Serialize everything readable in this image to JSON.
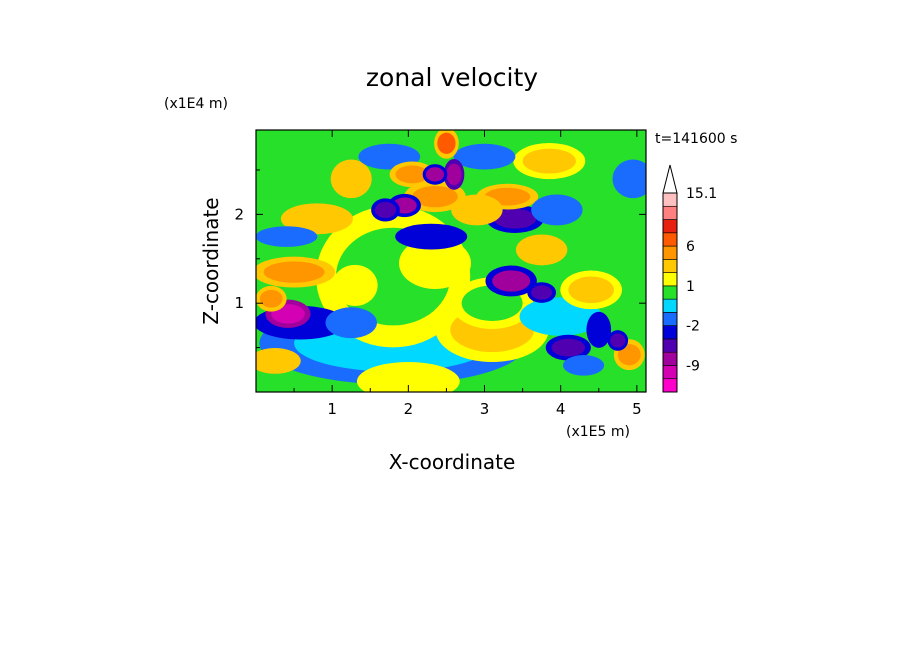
{
  "chart_data": {
    "type": "heatmap",
    "title": "zonal velocity",
    "xlabel": "X-coordinate",
    "ylabel": "Z-coordinate",
    "x_unit": "(x1E5 m)",
    "y_unit": "(x1E4 m)",
    "time_label": "t=141600 s",
    "xlim": [
      0,
      5.12
    ],
    "ylim": [
      0,
      2.95
    ],
    "x_ticks": [
      {
        "value": 1,
        "label": "1"
      },
      {
        "value": 2,
        "label": "2"
      },
      {
        "value": 3,
        "label": "3"
      },
      {
        "value": 4,
        "label": "4"
      },
      {
        "value": 5,
        "label": "5"
      }
    ],
    "y_ticks": [
      {
        "value": 1,
        "label": "1"
      },
      {
        "value": 2,
        "label": "2"
      }
    ],
    "colorbar": {
      "levels": [
        -15,
        -12,
        -9,
        -6,
        -4,
        -2,
        -1,
        0,
        1,
        2,
        4,
        6,
        9,
        12,
        15.1
      ],
      "colors": [
        "#ff00cc",
        "#d400b4",
        "#a0009c",
        "#5000b0",
        "#0000d8",
        "#1a6cff",
        "#00d8ff",
        "#26e02a",
        "#ffff00",
        "#ffc800",
        "#ff9600",
        "#ff5a00",
        "#e82010",
        "#ff8080",
        "#ffc0c0"
      ],
      "labeled": [
        {
          "value": 15.1,
          "label": "15.1"
        },
        {
          "value": 6,
          "label": "6"
        },
        {
          "value": 1,
          "label": "1"
        },
        {
          "value": -2,
          "label": "-2"
        },
        {
          "value": -9,
          "label": "-9"
        }
      ],
      "extend": "max"
    },
    "grid": false,
    "features": [
      {
        "x": 0.42,
        "z": 0.88,
        "value": -12,
        "rx": 0.22,
        "rz": 0.11
      },
      {
        "x": 0.58,
        "z": 0.78,
        "value": -3,
        "rx": 0.45,
        "rz": 0.13
      },
      {
        "x": 1.25,
        "z": 0.78,
        "value": -2,
        "rx": 0.25,
        "rz": 0.12
      },
      {
        "x": 1.8,
        "z": 1.3,
        "value": 0.5,
        "rx": 0.75,
        "rz": 0.55
      },
      {
        "x": 1.3,
        "z": 1.2,
        "value": 1.5,
        "rx": 0.22,
        "rz": 0.16
      },
      {
        "x": 2.35,
        "z": 1.45,
        "value": 1.5,
        "rx": 0.35,
        "rz": 0.2
      },
      {
        "x": 1.8,
        "z": 0.55,
        "value": -0.5,
        "rx": 1.3,
        "rz": 0.32
      },
      {
        "x": 2.0,
        "z": 0.12,
        "value": 1.5,
        "rx": 0.5,
        "rz": 0.15
      },
      {
        "x": 3.1,
        "z": 0.7,
        "value": 2.5,
        "rx": 0.55,
        "rz": 0.25
      },
      {
        "x": 1.7,
        "z": 2.05,
        "value": -6,
        "rx": 0.14,
        "rz": 0.09
      },
      {
        "x": 1.95,
        "z": 2.1,
        "value": -7,
        "rx": 0.16,
        "rz": 0.09
      },
      {
        "x": 2.35,
        "z": 2.45,
        "value": -7,
        "rx": 0.12,
        "rz": 0.08
      },
      {
        "x": 2.6,
        "z": 2.45,
        "value": -8,
        "rx": 0.1,
        "rz": 0.12
      },
      {
        "x": 2.3,
        "z": 1.75,
        "value": -3,
        "rx": 0.35,
        "rz": 0.1
      },
      {
        "x": 3.4,
        "z": 1.95,
        "value": -6,
        "rx": 0.28,
        "rz": 0.11
      },
      {
        "x": 3.35,
        "z": 1.25,
        "value": -7,
        "rx": 0.25,
        "rz": 0.12
      },
      {
        "x": 3.75,
        "z": 1.12,
        "value": -6,
        "rx": 0.14,
        "rz": 0.08
      },
      {
        "x": 4.1,
        "z": 0.5,
        "value": -5,
        "rx": 0.22,
        "rz": 0.1
      },
      {
        "x": 4.5,
        "z": 0.7,
        "value": -4,
        "rx": 0.12,
        "rz": 0.14
      },
      {
        "x": 4.75,
        "z": 0.58,
        "value": -5,
        "rx": 0.1,
        "rz": 0.08
      },
      {
        "x": 4.3,
        "z": 0.3,
        "value": -2,
        "rx": 0.2,
        "rz": 0.08
      },
      {
        "x": 2.5,
        "z": 2.8,
        "value": 7,
        "rx": 0.12,
        "rz": 0.12
      },
      {
        "x": 2.35,
        "z": 2.2,
        "value": 4,
        "rx": 0.3,
        "rz": 0.12
      },
      {
        "x": 2.05,
        "z": 2.45,
        "value": 4,
        "rx": 0.22,
        "rz": 0.1
      },
      {
        "x": 3.3,
        "z": 2.2,
        "value": 4,
        "rx": 0.3,
        "rz": 0.1
      },
      {
        "x": 2.9,
        "z": 2.05,
        "value": 3,
        "rx": 0.25,
        "rz": 0.12
      },
      {
        "x": 0.5,
        "z": 1.35,
        "value": 4,
        "rx": 0.4,
        "rz": 0.12
      },
      {
        "x": 0.2,
        "z": 1.05,
        "value": 5,
        "rx": 0.15,
        "rz": 0.1
      },
      {
        "x": 0.8,
        "z": 1.95,
        "value": 3,
        "rx": 0.35,
        "rz": 0.12
      },
      {
        "x": 1.25,
        "z": 2.4,
        "value": 3,
        "rx": 0.2,
        "rz": 0.15
      },
      {
        "x": 3.75,
        "z": 1.6,
        "value": 3,
        "rx": 0.25,
        "rz": 0.12
      },
      {
        "x": 4.4,
        "z": 1.15,
        "value": 2.5,
        "rx": 0.3,
        "rz": 0.15
      },
      {
        "x": 4.9,
        "z": 0.42,
        "value": 5,
        "rx": 0.15,
        "rz": 0.12
      },
      {
        "x": 0.25,
        "z": 0.35,
        "value": 3,
        "rx": 0.25,
        "rz": 0.1
      },
      {
        "x": 3.95,
        "z": 2.05,
        "value": -1.5,
        "rx": 0.25,
        "rz": 0.12
      },
      {
        "x": 4.95,
        "z": 2.4,
        "value": -1.5,
        "rx": 0.2,
        "rz": 0.15
      },
      {
        "x": 1.75,
        "z": 2.65,
        "value": -1.5,
        "rx": 0.3,
        "rz": 0.1
      },
      {
        "x": 0.4,
        "z": 1.75,
        "value": -2,
        "rx": 0.3,
        "rz": 0.08
      },
      {
        "x": 3.0,
        "z": 2.65,
        "value": -1.5,
        "rx": 0.3,
        "rz": 0.1
      },
      {
        "x": 3.85,
        "z": 2.6,
        "value": 2.5,
        "rx": 0.35,
        "rz": 0.14
      },
      {
        "x": 3.1,
        "z": 1.0,
        "value": 0.6,
        "rx": 0.4,
        "rz": 0.2
      },
      {
        "x": 4.0,
        "z": 0.85,
        "value": -0.4,
        "rx": 0.4,
        "rz": 0.15
      }
    ]
  }
}
